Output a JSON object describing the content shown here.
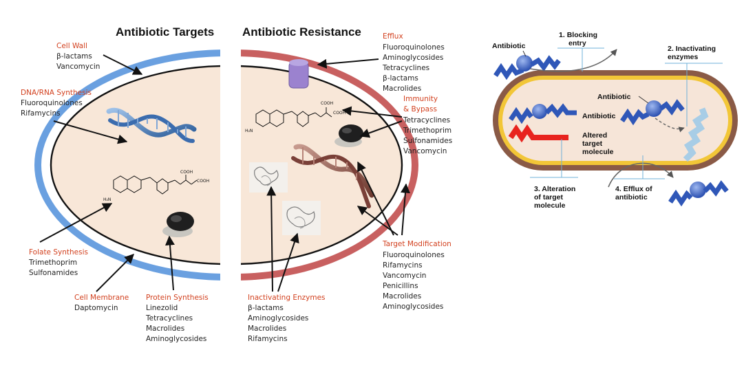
{
  "headings": {
    "targets": "Antibiotic Targets",
    "resistance": "Antibiotic Resistance"
  },
  "left_groups": {
    "cell_wall": {
      "title": "Cell Wall",
      "items": [
        "β-lactams",
        "Vancomycin"
      ]
    },
    "dna_rna": {
      "title": "DNA/RNA Synthesis",
      "items": [
        "Fluoroquinolones",
        "Rifamycins"
      ]
    },
    "folate": {
      "title": "Folate Synthesis",
      "items": [
        "Trimethoprim",
        "Sulfonamides"
      ]
    },
    "membrane": {
      "title": "Cell Membrane",
      "items": [
        "Daptomycin"
      ]
    },
    "protein": {
      "title": "Protein Synthesis",
      "items": [
        "Linezolid",
        "Tetracyclines",
        "Macrolides",
        "Aminoglycosides"
      ]
    }
  },
  "right_groups": {
    "efflux": {
      "title": "Efflux",
      "items": [
        "Fluoroquinolones",
        "Aminoglycosides",
        "Tetracyclines",
        "β-lactams",
        "Macrolides"
      ]
    },
    "immunity": {
      "title_lines": [
        "Immunity",
        "& Bypass"
      ],
      "items": [
        "Tetracyclines",
        "Trimethoprim",
        "Sulfonamides",
        "Vancomycin"
      ]
    },
    "target_mod": {
      "title": "Target Modification",
      "items": [
        "Fluoroquinolones",
        "Rifamycins",
        "Vancomycin",
        "Penicillins",
        "Macrolides",
        "Aminoglycosides"
      ]
    },
    "inactivating": {
      "title": "Inactivating Enzymes",
      "items": [
        "β-lactams",
        "Aminoglycosides",
        "Macrolides",
        "Rifamycins"
      ]
    }
  },
  "chem": {
    "cooh": "COOH",
    "nh2": "H₂N",
    "n": "N",
    "o": "O"
  },
  "mechanisms": {
    "antibiotic_outside": "Antibiotic",
    "antibiotic_in_cell": "Antibiotic",
    "antibiotic_target": "Antibiotic",
    "blocking": {
      "num": "1.",
      "line1": "Blocking",
      "line2": "entry"
    },
    "inactivating": {
      "num": "2.",
      "line1": "Inactivating",
      "line2": "enzymes"
    },
    "altered": {
      "line1": "Altered",
      "line2": "target",
      "line3": "molecule"
    },
    "alteration": {
      "num": "3.",
      "line1": "Alteration",
      "line2": "of target",
      "line3": "molecule"
    },
    "efflux": {
      "num": "4.",
      "line1": "Efflux of",
      "line2": "antibiotic"
    }
  },
  "colors": {
    "label_red": "#d2401e",
    "wall_blue": "#6aa0e0",
    "wall_red": "#c86060",
    "cytoplasm": "#f8e7d8",
    "molecule_blue": "#2f57b8",
    "altered_red": "#e8231e"
  }
}
